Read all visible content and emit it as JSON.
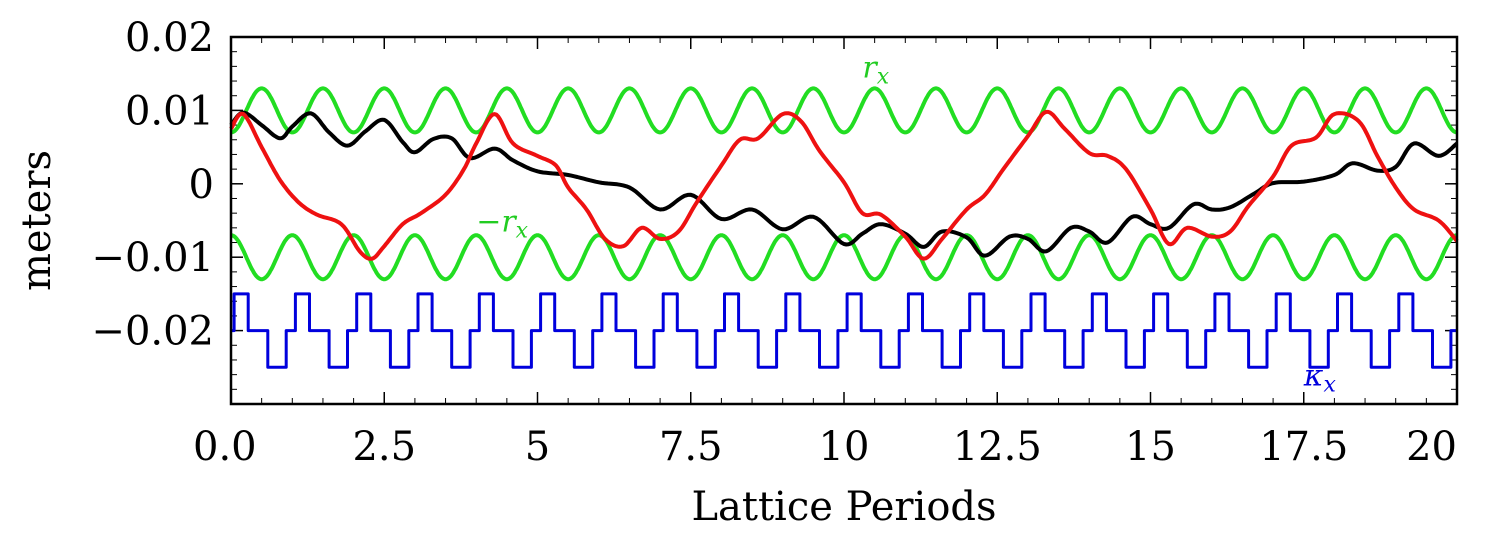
{
  "chart_data": {
    "type": "line",
    "title": "",
    "xlabel": "Lattice Periods",
    "ylabel": "meters",
    "xlim": [
      0,
      20
    ],
    "ylim": [
      -0.03,
      0.02
    ],
    "x_ticks": [
      {
        "value": 0,
        "label": "0.0"
      },
      {
        "value": 2.5,
        "label": "2.5"
      },
      {
        "value": 5,
        "label": "5"
      },
      {
        "value": 7.5,
        "label": "7.5"
      },
      {
        "value": 10,
        "label": "10"
      },
      {
        "value": 12.5,
        "label": "12.5"
      },
      {
        "value": 15,
        "label": "15"
      },
      {
        "value": 17.5,
        "label": "17.5"
      },
      {
        "value": 20,
        "label": "20"
      }
    ],
    "y_ticks": [
      {
        "value": 0.02,
        "label": "0.02"
      },
      {
        "value": 0.01,
        "label": "0.01"
      },
      {
        "value": 0,
        "label": "0"
      },
      {
        "value": -0.01,
        "label": "−0.01"
      },
      {
        "value": -0.02,
        "label": "−0.02"
      }
    ],
    "grid": false,
    "annotations": [
      {
        "text": "r",
        "sub": "x",
        "color": "#22cc22",
        "x": 10.3,
        "y": 0.0145
      },
      {
        "text": "−r",
        "sub": "x",
        "color": "#22cc22",
        "x": 4.0,
        "y": -0.0065
      },
      {
        "text": "κ",
        "sub": "x",
        "color": "#0000dd",
        "x": 17.5,
        "y": -0.0275
      }
    ],
    "series": [
      {
        "color": "#22dd22",
        "kind": "sine",
        "offset": 0.01,
        "amplitude": 0.003,
        "period": 1,
        "phase": 0.5,
        "x": [
          0,
          20
        ]
      },
      {
        "color": "#22dd22",
        "kind": "sine",
        "offset": -0.01,
        "amplitude": 0.003,
        "period": 1,
        "phase": 0.0,
        "x": [
          0,
          20
        ]
      },
      {
        "color": "#0000dd",
        "kind": "step",
        "levels": [
          -0.02,
          -0.015,
          -0.025
        ],
        "x": [
          0,
          20
        ]
      },
      {
        "color": "#000000",
        "kind": "line",
        "x": [
          0,
          0.2,
          0.5,
          0.8,
          1.0,
          1.3,
          1.6,
          1.9,
          2.2,
          2.5,
          2.8,
          3.0,
          3.3,
          3.6,
          3.9,
          4.3,
          4.6,
          5.0,
          5.5,
          6.0,
          6.5,
          7.0,
          7.5,
          8.0,
          8.5,
          9.0,
          9.5,
          10.0,
          10.3,
          10.6,
          11.0,
          11.3,
          11.6,
          12.0,
          12.3,
          12.7,
          13.0,
          13.3,
          13.7,
          14.0,
          14.3,
          14.7,
          15.0,
          15.3,
          15.7,
          16.0,
          16.3,
          16.7,
          17.0,
          17.5,
          18.0,
          18.3,
          18.7,
          19.0,
          19.3,
          19.7,
          20.0
        ],
        "y": [
          0.008,
          0.0097,
          0.008,
          0.0062,
          0.0078,
          0.0096,
          0.007,
          0.0052,
          0.0072,
          0.0087,
          0.0057,
          0.0043,
          0.0061,
          0.0062,
          0.0035,
          0.0048,
          0.0032,
          0.0017,
          0.0012,
          0.0002,
          -0.0005,
          -0.0035,
          -0.0015,
          -0.0048,
          -0.0035,
          -0.0062,
          -0.0045,
          -0.0082,
          -0.0068,
          -0.0055,
          -0.0068,
          -0.0086,
          -0.0065,
          -0.0073,
          -0.0098,
          -0.0072,
          -0.0075,
          -0.0092,
          -0.006,
          -0.0065,
          -0.008,
          -0.0045,
          -0.0055,
          -0.006,
          -0.0028,
          -0.0035,
          -0.0032,
          -0.0013,
          0.0001,
          0.0003,
          0.0012,
          0.0028,
          0.0018,
          0.0023,
          0.0055,
          0.0038,
          0.0055
        ]
      },
      {
        "color": "#ee1111",
        "kind": "line",
        "x": [
          0,
          0.2,
          0.5,
          0.8,
          1.1,
          1.4,
          1.8,
          2.1,
          2.3,
          2.5,
          2.8,
          3.1,
          3.5,
          3.8,
          4.0,
          4.3,
          4.6,
          5.0,
          5.3,
          5.5,
          5.8,
          6.1,
          6.4,
          6.7,
          7.0,
          7.3,
          7.6,
          8.0,
          8.3,
          8.6,
          9.0,
          9.3,
          9.6,
          10.0,
          10.3,
          10.6,
          11.0,
          11.3,
          11.6,
          12.0,
          12.3,
          12.6,
          13.0,
          13.3,
          13.6,
          14.0,
          14.3,
          14.6,
          15.0,
          15.3,
          15.6,
          16.0,
          16.3,
          16.6,
          17.0,
          17.3,
          17.7,
          18.0,
          18.4,
          18.7,
          19.0,
          19.3,
          19.7,
          20.0
        ],
        "y": [
          0.0075,
          0.0095,
          0.005,
          0.0005,
          -0.0025,
          -0.0042,
          -0.0055,
          -0.0092,
          -0.0102,
          -0.0085,
          -0.0055,
          -0.004,
          -0.0015,
          0.002,
          0.0055,
          0.0095,
          0.0055,
          0.0038,
          0.0025,
          -0.0005,
          -0.0035,
          -0.0075,
          -0.0085,
          -0.006,
          -0.0075,
          -0.0065,
          -0.0025,
          0.0025,
          0.006,
          0.0062,
          0.0095,
          0.0085,
          0.0045,
          0.0002,
          -0.004,
          -0.0042,
          -0.0072,
          -0.0102,
          -0.0075,
          -0.0035,
          -0.0015,
          0.002,
          0.0065,
          0.0098,
          0.0075,
          0.0042,
          0.0038,
          0.002,
          -0.0035,
          -0.0082,
          -0.006,
          -0.0072,
          -0.0065,
          -0.003,
          0.001,
          0.0052,
          0.0063,
          0.0095,
          0.0085,
          0.0038,
          -0.0005,
          -0.0035,
          -0.005,
          -0.0078
        ]
      }
    ]
  }
}
